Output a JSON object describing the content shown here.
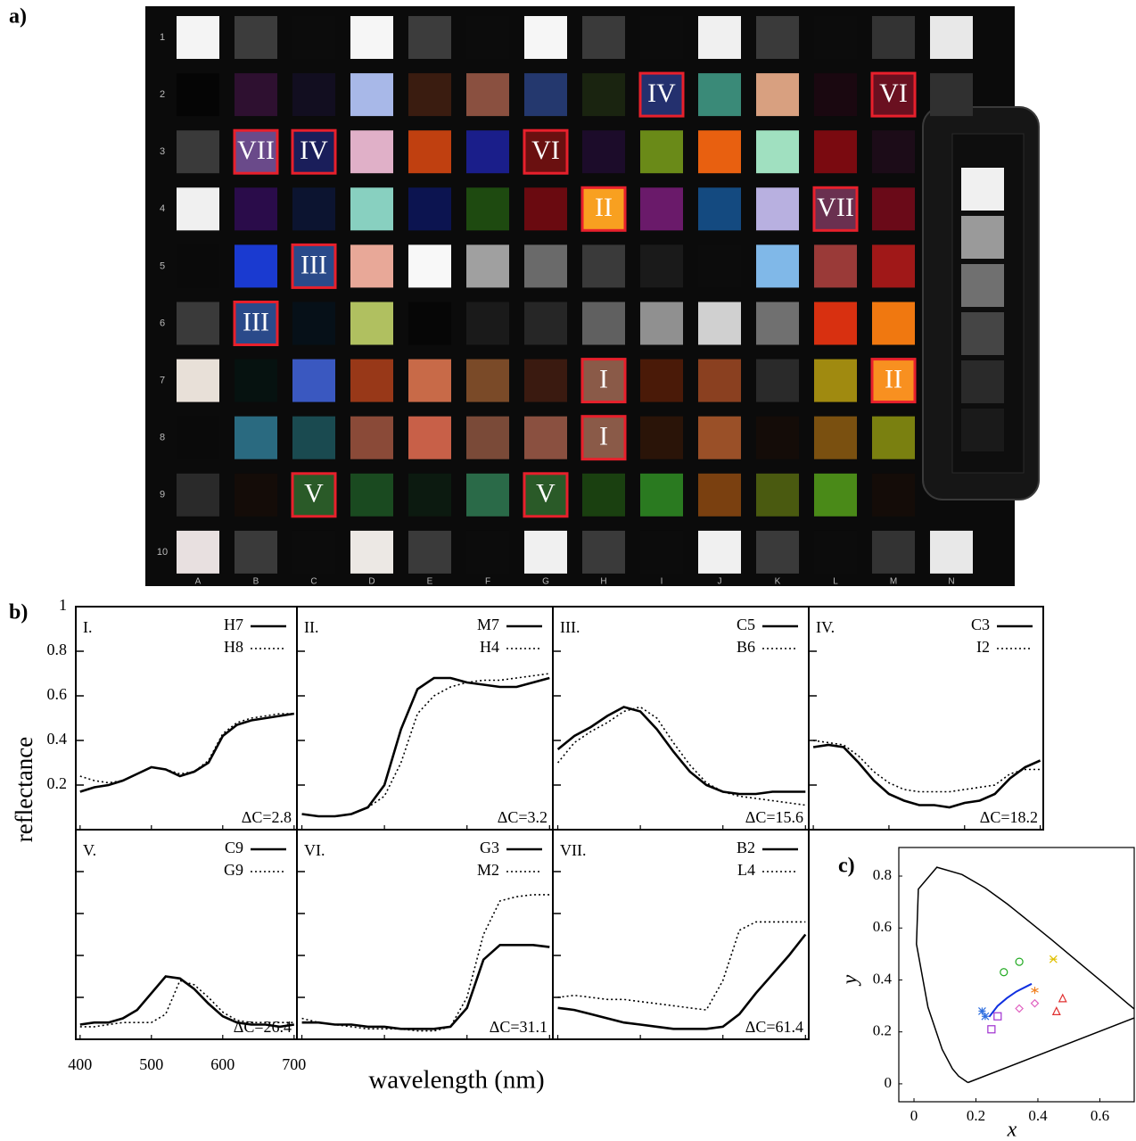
{
  "panel_a": {
    "label": "a)",
    "row_labels": [
      "1",
      "2",
      "3",
      "4",
      "5",
      "6",
      "7",
      "8",
      "9",
      "10"
    ],
    "column_labels": [
      "A",
      "B",
      "C",
      "D",
      "E",
      "F",
      "G",
      "H",
      "I",
      "J",
      "K",
      "L",
      "M",
      "N"
    ],
    "patches": [
      [
        "#f4f4f4",
        "#3c3c3c",
        "#0c0c0c",
        "#f6f6f6",
        "#3c3c3c",
        "#0c0c0c",
        "#f6f6f6",
        "#3a3a3a",
        "#0c0c0c",
        "#f0f0f0",
        "#3a3a3a",
        "#0c0c0c",
        "#333333",
        "#e8e8e8"
      ],
      [
        "#050505",
        "#2e1030",
        "#120e20",
        "#a8b8e8",
        "#3a1c10",
        "#8a5040",
        "#24386e",
        "#1a2410",
        "#24306e",
        "#3a8a78",
        "#d8a080",
        "#1a0810",
        "#6a1020",
        "#303030"
      ],
      [
        "#3a3a3a",
        "#6a4a8a",
        "#1a1e5a",
        "#e0b0c8",
        "#c04010",
        "#1a1e8a",
        "#6a1010",
        "#1c0c2a",
        "#6a8a18",
        "#e86010",
        "#a0e0c0",
        "#7a0a10",
        "#1c0c18",
        null
      ],
      [
        "#f0f0f0",
        "#2a0c4a",
        "#0c1430",
        "#88d0c0",
        "#0c1450",
        "#1e4a10",
        "#6a0a10",
        "#f8a020",
        "#6a1a6a",
        "#144a80",
        "#b8b0e0",
        "#6a3050",
        "#6a0a18",
        null
      ],
      [
        "#0a0a0a",
        "#1a3ad0",
        "#2a4a8a",
        "#e8a898",
        "#f8f8f8",
        "#a0a0a0",
        "#6a6a6a",
        "#3a3a3a",
        "#1a1a1a",
        "#0c0c0c",
        "#80b8e8",
        "#9a3a38",
        "#a01818",
        null
      ],
      [
        "#3a3a3a",
        "#2a4a8a",
        "#061018",
        "#b0c060",
        "#060606",
        "#1a1a1a",
        "#262626",
        "#606060",
        "#909090",
        "#d0d0d0",
        "#707070",
        "#d83010",
        "#f07810",
        null
      ],
      [
        "#e8e0d8",
        "#061210",
        "#3a58c0",
        "#983818",
        "#c86a48",
        "#7a4a28",
        "#3a1a10",
        "#8a5a48",
        "#4a1a08",
        "#8a4020",
        "#2a2a2a",
        "#a08a10",
        "#f89020",
        null
      ],
      [
        "#0a0a0a",
        "#2a6a80",
        "#1a4a50",
        "#8a4a38",
        "#c86048",
        "#7a4a38",
        "#8a5040",
        "#8a5a48",
        "#2a1408",
        "#9a5028",
        "#140c08",
        "#7a5010",
        "#7a8010",
        null
      ],
      [
        "#2a2a2a",
        "#140c08",
        "#2a5a28",
        "#1a4a20",
        "#0c1a10",
        "#2a6a48",
        "#2a5a28",
        "#1a4010",
        "#2a7a20",
        "#7a4010",
        "#4a5a10",
        "#4a8a18",
        "#140c08",
        null
      ],
      [
        "#e8e0e0",
        "#3a3a3a",
        "#0c0c0c",
        "#ece8e4",
        "#3a3a3a",
        "#0c0c0c",
        "#f0f0f0",
        "#3a3a3a",
        "#0c0c0c",
        "#f0f0f0",
        "#3a3a3a",
        "#0c0c0c",
        "#333333",
        "#e8e8e8"
      ]
    ],
    "marks": [
      {
        "row": 1,
        "col": 8,
        "label": "IV"
      },
      {
        "row": 1,
        "col": 12,
        "label": "VI"
      },
      {
        "row": 2,
        "col": 1,
        "label": "VII"
      },
      {
        "row": 2,
        "col": 2,
        "label": "IV"
      },
      {
        "row": 2,
        "col": 6,
        "label": "VI"
      },
      {
        "row": 3,
        "col": 7,
        "label": "II"
      },
      {
        "row": 3,
        "col": 11,
        "label": "VII"
      },
      {
        "row": 4,
        "col": 2,
        "label": "III"
      },
      {
        "row": 5,
        "col": 1,
        "label": "III"
      },
      {
        "row": 6,
        "col": 7,
        "label": "I"
      },
      {
        "row": 6,
        "col": 12,
        "label": "II"
      },
      {
        "row": 7,
        "col": 7,
        "label": "I"
      },
      {
        "row": 8,
        "col": 2,
        "label": "V"
      },
      {
        "row": 8,
        "col": 6,
        "label": "V"
      }
    ]
  },
  "panel_b": {
    "label": "b)",
    "ylabel": "reflectance",
    "xlabel": "wavelength (nm)"
  },
  "chart_data": [
    {
      "type": "line",
      "title": "I.",
      "annotation": "ΔC=2.8",
      "xlim": [
        394,
        704
      ],
      "ylim": [
        0,
        1
      ],
      "xticks": [
        400,
        500,
        600,
        700
      ],
      "yticks": [
        0.2,
        0.4,
        0.6,
        0.8,
        1
      ],
      "x": [
        400,
        420,
        440,
        460,
        480,
        500,
        520,
        540,
        560,
        580,
        600,
        620,
        640,
        660,
        680,
        700
      ],
      "series": [
        {
          "name": "H7",
          "color": "#000000",
          "dash": "solid",
          "values": [
            0.17,
            0.19,
            0.2,
            0.22,
            0.25,
            0.28,
            0.27,
            0.24,
            0.26,
            0.3,
            0.42,
            0.47,
            0.49,
            0.5,
            0.51,
            0.52
          ]
        },
        {
          "name": "H8",
          "color": "#000000",
          "dash": "dotted",
          "values": [
            0.24,
            0.22,
            0.21,
            0.22,
            0.25,
            0.28,
            0.27,
            0.25,
            0.26,
            0.31,
            0.43,
            0.48,
            0.5,
            0.51,
            0.52,
            0.52
          ]
        }
      ]
    },
    {
      "type": "line",
      "title": "II.",
      "annotation": "ΔC=3.2",
      "xlim": [
        394,
        704
      ],
      "ylim": [
        0,
        1
      ],
      "xticks": [
        400,
        500,
        600,
        700
      ],
      "yticks": [
        0.2,
        0.4,
        0.6,
        0.8,
        1
      ],
      "x": [
        400,
        420,
        440,
        460,
        480,
        500,
        520,
        540,
        560,
        580,
        600,
        620,
        640,
        660,
        680,
        700
      ],
      "series": [
        {
          "name": "M7",
          "color": "#000000",
          "dash": "solid",
          "values": [
            0.07,
            0.06,
            0.06,
            0.07,
            0.1,
            0.2,
            0.45,
            0.63,
            0.68,
            0.68,
            0.66,
            0.65,
            0.64,
            0.64,
            0.66,
            0.68
          ]
        },
        {
          "name": "H4",
          "color": "#000000",
          "dash": "dotted",
          "values": [
            0.07,
            0.06,
            0.06,
            0.07,
            0.1,
            0.15,
            0.3,
            0.52,
            0.6,
            0.64,
            0.66,
            0.67,
            0.67,
            0.68,
            0.69,
            0.7
          ]
        }
      ]
    },
    {
      "type": "line",
      "title": "III.",
      "annotation": "ΔC=15.6",
      "xlim": [
        394,
        704
      ],
      "ylim": [
        0,
        1
      ],
      "xticks": [
        400,
        500,
        600,
        700
      ],
      "yticks": [
        0.2,
        0.4,
        0.6,
        0.8,
        1
      ],
      "x": [
        400,
        420,
        440,
        460,
        480,
        500,
        520,
        540,
        560,
        580,
        600,
        620,
        640,
        660,
        680,
        700
      ],
      "series": [
        {
          "name": "C5",
          "color": "#000000",
          "dash": "solid",
          "values": [
            0.36,
            0.42,
            0.46,
            0.51,
            0.55,
            0.53,
            0.45,
            0.35,
            0.26,
            0.2,
            0.17,
            0.16,
            0.16,
            0.17,
            0.17,
            0.17
          ]
        },
        {
          "name": "B6",
          "color": "#000000",
          "dash": "dotted",
          "values": [
            0.3,
            0.39,
            0.44,
            0.48,
            0.53,
            0.55,
            0.5,
            0.39,
            0.29,
            0.21,
            0.17,
            0.15,
            0.14,
            0.13,
            0.12,
            0.11
          ]
        }
      ]
    },
    {
      "type": "line",
      "title": "IV.",
      "annotation": "ΔC=18.2",
      "xlim": [
        394,
        704
      ],
      "ylim": [
        0,
        1
      ],
      "xticks": [
        400,
        500,
        600,
        700
      ],
      "yticks": [
        0.2,
        0.4,
        0.6,
        0.8,
        1
      ],
      "x": [
        400,
        420,
        440,
        460,
        480,
        500,
        520,
        540,
        560,
        580,
        600,
        620,
        640,
        660,
        680,
        700
      ],
      "series": [
        {
          "name": "C3",
          "color": "#000000",
          "dash": "solid",
          "values": [
            0.37,
            0.38,
            0.37,
            0.3,
            0.22,
            0.16,
            0.13,
            0.11,
            0.11,
            0.1,
            0.12,
            0.13,
            0.16,
            0.23,
            0.28,
            0.31
          ]
        },
        {
          "name": "I2",
          "color": "#000000",
          "dash": "dotted",
          "values": [
            0.4,
            0.39,
            0.38,
            0.33,
            0.26,
            0.21,
            0.18,
            0.17,
            0.17,
            0.17,
            0.18,
            0.19,
            0.2,
            0.25,
            0.27,
            0.27
          ]
        }
      ]
    },
    {
      "type": "line",
      "title": "V.",
      "annotation": "ΔC=26.4",
      "xlim": [
        394,
        704
      ],
      "ylim": [
        0,
        1
      ],
      "xticks": [
        400,
        500,
        600,
        700
      ],
      "yticks": [
        0.2,
        0.4,
        0.6,
        0.8,
        1
      ],
      "x": [
        400,
        420,
        440,
        460,
        480,
        500,
        520,
        540,
        560,
        580,
        600,
        620,
        640,
        660,
        680,
        700
      ],
      "series": [
        {
          "name": "C9",
          "color": "#000000",
          "dash": "solid",
          "values": [
            0.07,
            0.08,
            0.08,
            0.1,
            0.14,
            0.22,
            0.3,
            0.29,
            0.24,
            0.17,
            0.11,
            0.08,
            0.07,
            0.07,
            0.06,
            0.07
          ]
        },
        {
          "name": "G9",
          "color": "#000000",
          "dash": "dotted",
          "values": [
            0.06,
            0.06,
            0.07,
            0.08,
            0.08,
            0.08,
            0.12,
            0.28,
            0.26,
            0.2,
            0.13,
            0.09,
            0.08,
            0.08,
            0.08,
            0.08
          ]
        }
      ]
    },
    {
      "type": "line",
      "title": "VI.",
      "annotation": "ΔC=31.1",
      "xlim": [
        394,
        704
      ],
      "ylim": [
        0,
        1
      ],
      "xticks": [
        400,
        500,
        600,
        700
      ],
      "yticks": [
        0.2,
        0.4,
        0.6,
        0.8,
        1
      ],
      "x": [
        400,
        420,
        440,
        460,
        480,
        500,
        520,
        540,
        560,
        580,
        600,
        620,
        640,
        660,
        680,
        700
      ],
      "series": [
        {
          "name": "G3",
          "color": "#000000",
          "dash": "solid",
          "values": [
            0.08,
            0.08,
            0.07,
            0.07,
            0.06,
            0.06,
            0.05,
            0.05,
            0.05,
            0.06,
            0.15,
            0.38,
            0.45,
            0.45,
            0.45,
            0.44
          ]
        },
        {
          "name": "M2",
          "color": "#000000",
          "dash": "dotted",
          "values": [
            0.1,
            0.08,
            0.07,
            0.06,
            0.05,
            0.05,
            0.05,
            0.04,
            0.04,
            0.06,
            0.2,
            0.5,
            0.66,
            0.68,
            0.69,
            0.69
          ]
        }
      ]
    },
    {
      "type": "line",
      "title": "VII.",
      "annotation": "ΔC=61.4",
      "xlim": [
        394,
        704
      ],
      "ylim": [
        0,
        1
      ],
      "xticks": [
        400,
        500,
        600,
        700
      ],
      "yticks": [
        0.2,
        0.4,
        0.6,
        0.8,
        1
      ],
      "x": [
        400,
        420,
        440,
        460,
        480,
        500,
        520,
        540,
        560,
        580,
        600,
        620,
        640,
        660,
        680,
        700
      ],
      "series": [
        {
          "name": "B2",
          "color": "#000000",
          "dash": "solid",
          "values": [
            0.15,
            0.14,
            0.12,
            0.1,
            0.08,
            0.07,
            0.06,
            0.05,
            0.05,
            0.05,
            0.06,
            0.12,
            0.22,
            0.31,
            0.4,
            0.5
          ]
        },
        {
          "name": "L4",
          "color": "#000000",
          "dash": "dotted",
          "values": [
            0.2,
            0.21,
            0.2,
            0.19,
            0.19,
            0.18,
            0.17,
            0.16,
            0.15,
            0.14,
            0.28,
            0.52,
            0.56,
            0.56,
            0.56,
            0.56
          ]
        }
      ]
    },
    {
      "type": "scatter",
      "label": "c)",
      "xlabel": "x",
      "ylabel": "y",
      "xlim": [
        -0.049,
        0.711
      ],
      "ylim": [
        -0.069,
        0.91
      ],
      "xticks": [
        0,
        0.2,
        0.4,
        0.6
      ],
      "yticks": [
        0,
        0.2,
        0.4,
        0.6,
        0.8
      ],
      "series": [
        {
          "draw": "line",
          "color": "#000000",
          "x": [
            0.1741,
            0.144,
            0.124,
            0.091,
            0.045,
            0.008,
            0.014,
            0.074,
            0.155,
            0.23,
            0.302,
            0.373,
            0.444,
            0.512,
            0.627,
            0.691,
            0.735,
            0.1741
          ],
          "y": [
            0.005,
            0.03,
            0.058,
            0.133,
            0.295,
            0.538,
            0.75,
            0.834,
            0.806,
            0.754,
            0.692,
            0.624,
            0.555,
            0.487,
            0.373,
            0.308,
            0.265,
            0.005
          ]
        },
        {
          "draw": "line",
          "color": "#1030e0",
          "x": [
            0.243,
            0.27,
            0.3,
            0.33,
            0.36,
            0.38
          ],
          "y": [
            0.258,
            0.3,
            0.33,
            0.355,
            0.373,
            0.385
          ]
        },
        {
          "draw": "circle",
          "color": "#22aa22",
          "x": [
            0.29,
            0.34
          ],
          "y": [
            0.43,
            0.47
          ]
        },
        {
          "draw": "cross",
          "color": "#e0c000",
          "x": [
            0.45
          ],
          "y": [
            0.48
          ]
        },
        {
          "draw": "star",
          "color": "#f08020",
          "x": [
            0.39
          ],
          "y": [
            0.36
          ]
        },
        {
          "draw": "triangle",
          "color": "#e03030",
          "x": [
            0.46,
            0.48
          ],
          "y": [
            0.28,
            0.33
          ]
        },
        {
          "draw": "diamond",
          "color": "#e060c0",
          "x": [
            0.34,
            0.39
          ],
          "y": [
            0.29,
            0.31
          ]
        },
        {
          "draw": "square",
          "color": "#a030d0",
          "x": [
            0.25,
            0.27
          ],
          "y": [
            0.21,
            0.26
          ]
        },
        {
          "draw": "asterisk",
          "color": "#3070e0",
          "x": [
            0.22,
            0.23
          ],
          "y": [
            0.28,
            0.26
          ]
        }
      ]
    }
  ]
}
